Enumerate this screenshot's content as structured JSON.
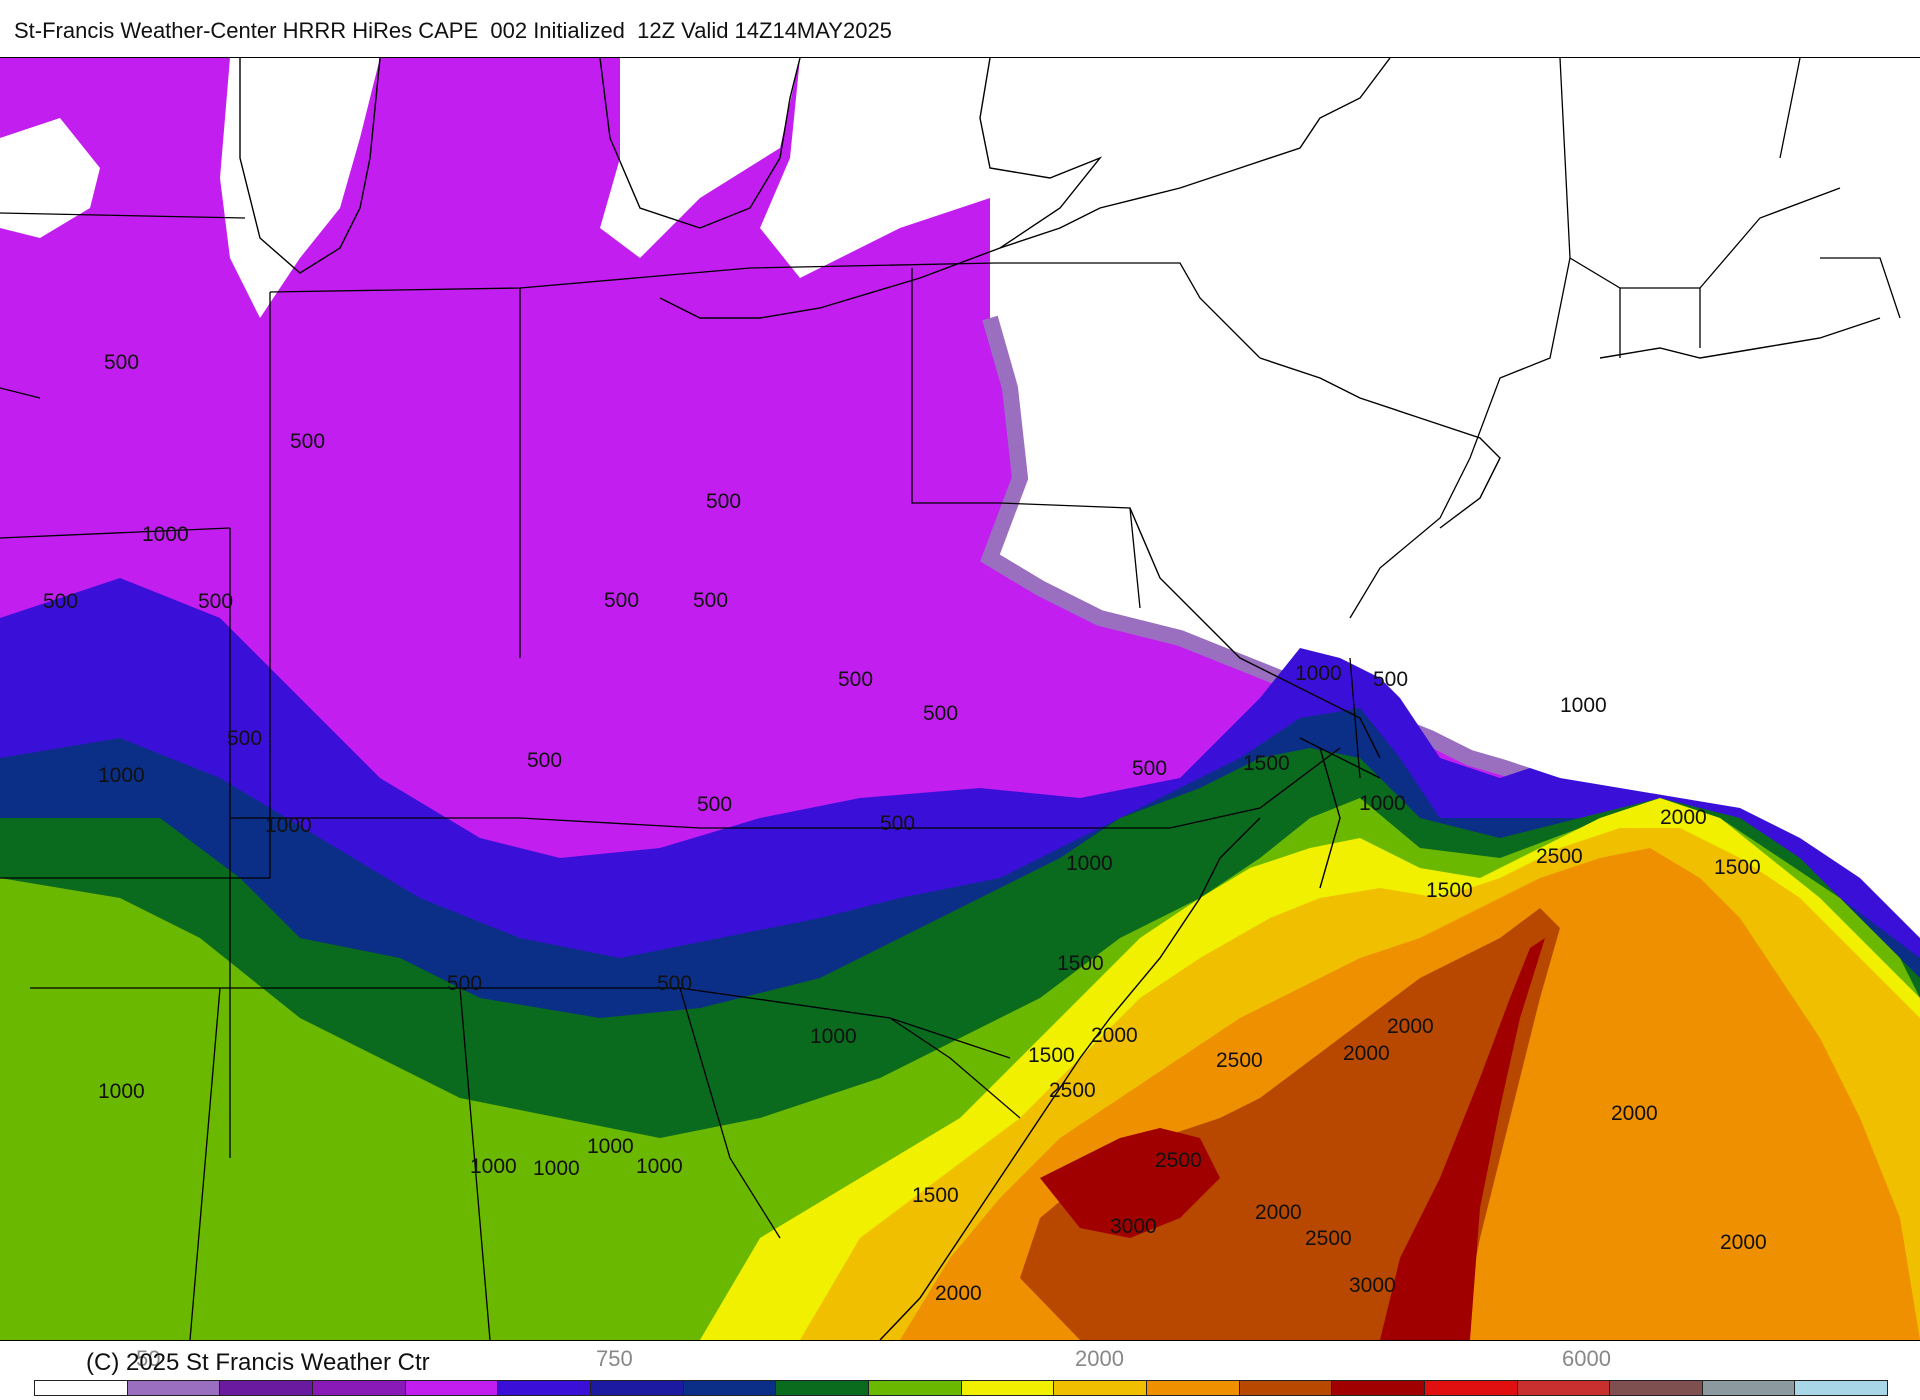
{
  "header": {
    "title": "St-Francis Weather-Center HRRR HiRes CAPE  002 Initialized  12Z Valid 14Z14MAY2025"
  },
  "footer": {
    "copyright": "(C) 2025 St Francis Weather Ctr"
  },
  "legend": {
    "colors": [
      "#ffffff",
      "#9b6fc0",
      "#6a1a9e",
      "#8a1ab8",
      "#c21ef0",
      "#3a10d8",
      "#1c1aa0",
      "#0b2e86",
      "#0a6a1e",
      "#6ab800",
      "#f0f000",
      "#f0c000",
      "#ee9000",
      "#b84800",
      "#a00000",
      "#e01010",
      "#c83030",
      "#7e5050",
      "#8c9aa0",
      "#a8d8e8"
    ],
    "tick_labels": [
      "50",
      "750",
      "2000",
      "6000"
    ]
  },
  "contour_labels": [
    "500",
    "500",
    "500",
    "500",
    "500",
    "500",
    "500",
    "500",
    "500",
    "500",
    "500",
    "500",
    "500",
    "500",
    "500",
    "500",
    "500",
    "1000",
    "1000",
    "1000",
    "1000",
    "1000",
    "1000",
    "1000",
    "1000",
    "1000",
    "1000",
    "1000",
    "1000",
    "1000",
    "1500",
    "1500",
    "1500",
    "1500",
    "1500",
    "1500",
    "2000",
    "2000",
    "2000",
    "2000",
    "2000",
    "2000",
    "2000",
    "2000",
    "2500",
    "2500",
    "2500",
    "2500",
    "2500",
    "3000",
    "3000"
  ],
  "colors": {
    "white": "#ffffff",
    "lavender": "#9b6fc0",
    "violet": "#c21ef0",
    "blue": "#3a10d8",
    "navy": "#0b2e86",
    "green": "#0a6a1e",
    "lime": "#6ab800",
    "yellow": "#f0f000",
    "gold": "#f0c000",
    "orange": "#ee9000",
    "brown": "#b84800",
    "darkred": "#a00000"
  }
}
